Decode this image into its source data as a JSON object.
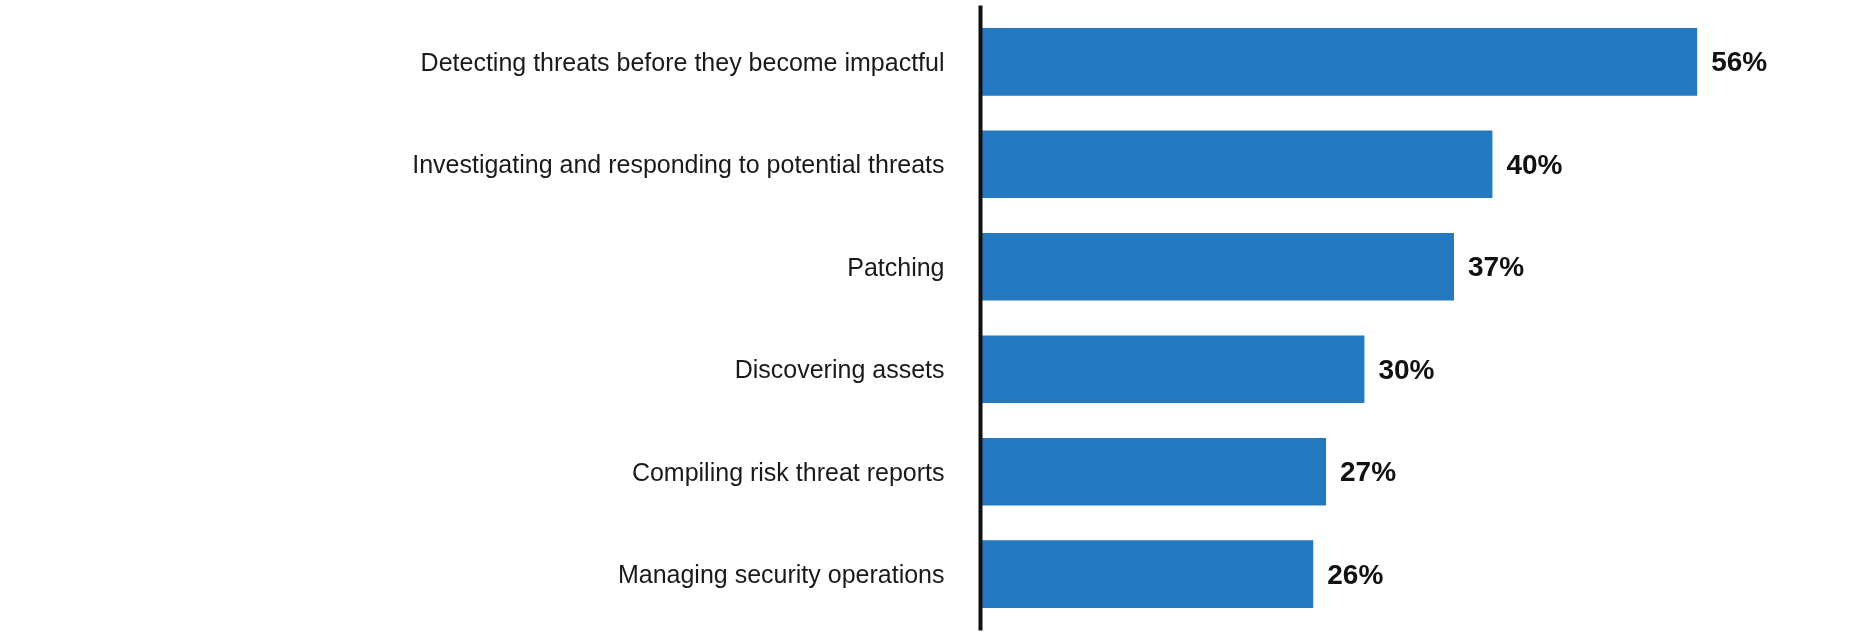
{
  "chart_data": {
    "type": "bar",
    "orientation": "horizontal",
    "categories": [
      "Detecting threats before they become impactful",
      "Investigating and responding to potential threats",
      "Patching",
      "Discovering assets",
      "Compiling risk threat reports",
      "Managing security operations"
    ],
    "values": [
      56,
      40,
      37,
      30,
      27,
      26
    ],
    "value_labels": [
      "56%",
      "40%",
      "37%",
      "30%",
      "27%",
      "26%"
    ],
    "color": "#2479c0",
    "tick_labels": "y"
  }
}
